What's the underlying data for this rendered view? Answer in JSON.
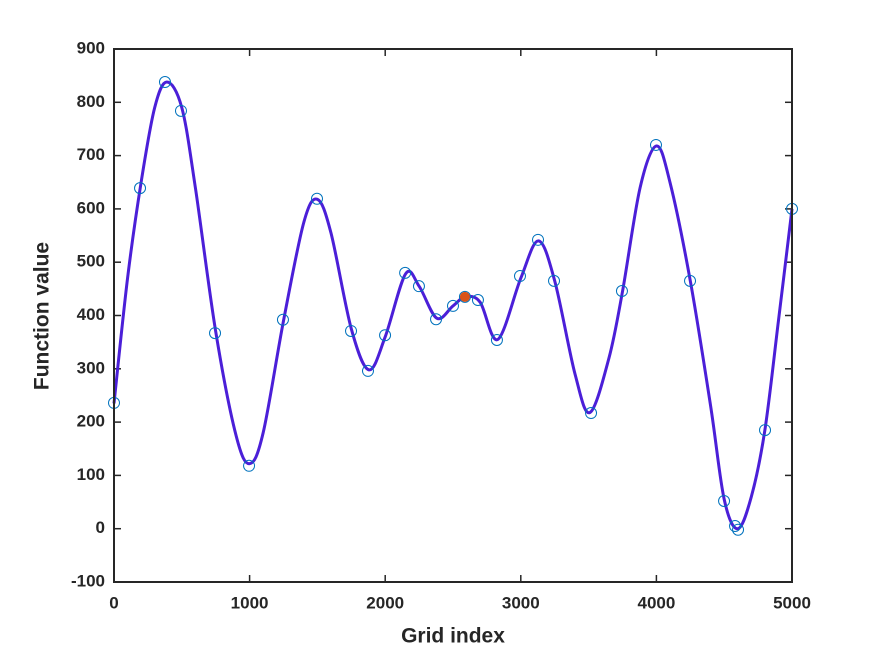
{
  "chart_data": {
    "type": "line",
    "xlabel": "Grid index",
    "ylabel": "Function value",
    "xlim": [
      0,
      5000
    ],
    "ylim": [
      -100,
      900
    ],
    "xticks": [
      0,
      1000,
      2000,
      3000,
      4000,
      5000
    ],
    "yticks": [
      -100,
      0,
      100,
      200,
      300,
      400,
      500,
      600,
      700,
      800,
      900
    ],
    "box": true,
    "series": [
      {
        "mark": "line",
        "color": "#4b1fd8",
        "x": [
          0,
          100,
          200,
          300,
          390,
          500,
          600,
          750,
          900,
          1000,
          1100,
          1250,
          1400,
          1500,
          1600,
          1750,
          1880,
          2000,
          2150,
          2250,
          2380,
          2500,
          2590,
          2700,
          2830,
          3000,
          3130,
          3250,
          3400,
          3510,
          3650,
          3750,
          3880,
          4000,
          4100,
          4250,
          4400,
          4500,
          4600,
          4700,
          4800,
          4900,
          5000
        ],
        "values": [
          235,
          470,
          650,
          790,
          838,
          790,
          640,
          370,
          175,
          122,
          180,
          390,
          575,
          618,
          555,
          375,
          298,
          360,
          478,
          455,
          395,
          418,
          435,
          425,
          355,
          470,
          540,
          465,
          290,
          218,
          320,
          445,
          640,
          718,
          650,
          465,
          230,
          55,
          0,
          60,
          185,
          390,
          600
        ]
      },
      {
        "mark": "circle",
        "color": "#0072bd",
        "x": [
          0,
          192,
          376,
          494,
          745,
          996,
          1246,
          1497,
          1748,
          1873,
          1999,
          2147,
          2249,
          2375,
          2500,
          2588,
          2684,
          2824,
          2994,
          3127,
          3245,
          3518,
          3746,
          3997,
          4248,
          4499,
          4580,
          4602,
          4801,
          5000
        ],
        "values": [
          236,
          639,
          838,
          784,
          367,
          118,
          392,
          619,
          371,
          296,
          363,
          480,
          455,
          393,
          418,
          435,
          429,
          354,
          474,
          542,
          465,
          217,
          446,
          720,
          465,
          52,
          5,
          -2,
          185,
          600
        ]
      },
      {
        "mark": "dot",
        "color": "#d95319",
        "x": [
          2588
        ],
        "values": [
          435
        ]
      }
    ]
  }
}
